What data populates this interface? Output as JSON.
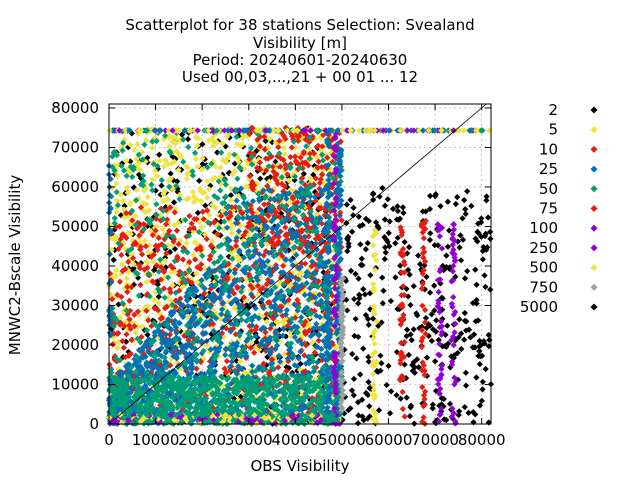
{
  "chart_data": {
    "type": "scatter",
    "title_lines": [
      "Scatterplot for   38 stations Selection: Svealand",
      "Visibility [m]",
      "Period: 20240601-20240630",
      "Used 00,03,...,21 + 00 01 ... 12"
    ],
    "xlabel": "OBS Visibility",
    "ylabel": "MNWC2-Bscale Visibility",
    "xlim": [
      0,
      82000
    ],
    "ylim": [
      0,
      81000
    ],
    "x_ticks": [
      0,
      10000,
      20000,
      30000,
      40000,
      50000,
      60000,
      70000,
      80000
    ],
    "y_ticks": [
      0,
      10000,
      20000,
      30000,
      40000,
      50000,
      60000,
      70000,
      80000
    ],
    "x_tick_labels": [
      "0",
      "10000",
      "20000",
      "30000",
      "40000",
      "50000",
      "60000",
      "70000",
      "80000"
    ],
    "y_tick_labels": [
      "0",
      "10000",
      "20000",
      "30000",
      "40000",
      "50000",
      "60000",
      "70000",
      "80000"
    ],
    "grid": true,
    "diagonal": true,
    "legend_position": "right",
    "series": [
      {
        "name": "2",
        "color": "#000000"
      },
      {
        "name": "5",
        "color": "#f0e442"
      },
      {
        "name": "10",
        "color": "#e51e10"
      },
      {
        "name": "25",
        "color": "#0072b2"
      },
      {
        "name": "50",
        "color": "#009e73"
      },
      {
        "name": "75",
        "color": "#e51e10"
      },
      {
        "name": "100",
        "color": "#9400d3"
      },
      {
        "name": "250",
        "color": "#9400d3"
      },
      {
        "name": "500",
        "color": "#f0e442"
      },
      {
        "name": "750",
        "color": "#a0a0a0"
      },
      {
        "name": "5000",
        "color": "#000000"
      }
    ]
  }
}
